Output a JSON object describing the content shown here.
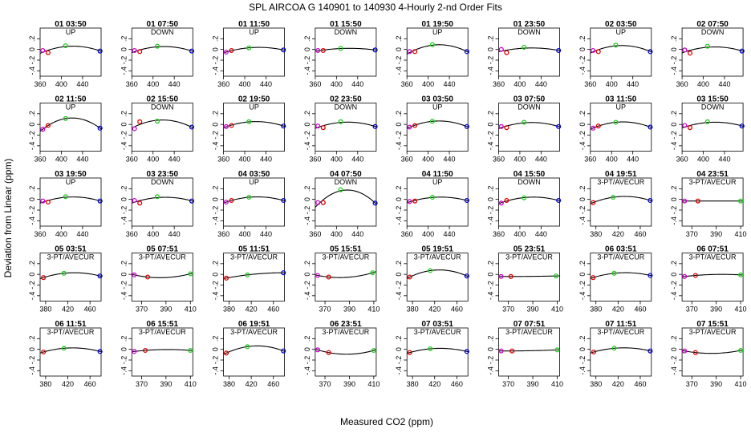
{
  "title": "SPL    AIRCOA G   140901 to 140930   4-Hourly 2-nd Order Fits",
  "xlabel": "Measured CO2 (ppm)",
  "ylabel": "Deviation from Linear (ppm)",
  "colors": {
    "red": "#dd0000",
    "green": "#22cc22",
    "blue": "#0000cc",
    "magenta": "#cc00cc"
  },
  "chart_data": {
    "type": "scatter",
    "rows": 5,
    "cols": 8,
    "ylim": [
      -0.5,
      0.4
    ],
    "yticks": [
      -0.4,
      -0.2,
      0,
      0.2
    ],
    "axis_sets": {
      "A": {
        "xlim": [
          360,
          475
        ],
        "xticks": [
          360,
          400,
          440
        ]
      },
      "B": {
        "xlim": [
          370,
          480
        ],
        "xticks": [
          380,
          420,
          460
        ]
      },
      "C": {
        "xlim": [
          362,
          412
        ],
        "xticks": [
          370,
          390,
          410
        ]
      }
    },
    "panels": [
      {
        "title": "01 03:50",
        "mode": "UP",
        "axis": "A",
        "points": [
          {
            "x": 365,
            "y": -0.02,
            "c": "magenta"
          },
          {
            "x": 375,
            "y": -0.06,
            "c": "red"
          },
          {
            "x": 408,
            "y": 0.07,
            "c": "green"
          },
          {
            "x": 473,
            "y": -0.03,
            "c": "blue"
          }
        ]
      },
      {
        "title": "01 07:50",
        "mode": "DOWN",
        "axis": "A",
        "points": [
          {
            "x": 365,
            "y": -0.02,
            "c": "magenta"
          },
          {
            "x": 375,
            "y": -0.04,
            "c": "red"
          },
          {
            "x": 408,
            "y": 0.06,
            "c": "green"
          },
          {
            "x": 473,
            "y": -0.03,
            "c": "blue"
          }
        ]
      },
      {
        "title": "01 11:50",
        "mode": "UP",
        "axis": "A",
        "points": [
          {
            "x": 365,
            "y": -0.05,
            "c": "magenta"
          },
          {
            "x": 375,
            "y": -0.02,
            "c": "red"
          },
          {
            "x": 408,
            "y": 0.03,
            "c": "green"
          },
          {
            "x": 473,
            "y": -0.01,
            "c": "blue"
          }
        ]
      },
      {
        "title": "01 15:50",
        "mode": "DOWN",
        "axis": "A",
        "points": [
          {
            "x": 365,
            "y": -0.02,
            "c": "magenta"
          },
          {
            "x": 375,
            "y": -0.02,
            "c": "red"
          },
          {
            "x": 408,
            "y": 0.02,
            "c": "green"
          },
          {
            "x": 473,
            "y": -0.01,
            "c": "blue"
          }
        ]
      },
      {
        "title": "01 19:50",
        "mode": "UP",
        "axis": "A",
        "points": [
          {
            "x": 365,
            "y": -0.04,
            "c": "magenta"
          },
          {
            "x": 375,
            "y": -0.04,
            "c": "red"
          },
          {
            "x": 408,
            "y": 0.09,
            "c": "green"
          },
          {
            "x": 473,
            "y": -0.04,
            "c": "blue"
          }
        ]
      },
      {
        "title": "01 23:50",
        "mode": "DOWN",
        "axis": "A",
        "points": [
          {
            "x": 365,
            "y": 0.0,
            "c": "magenta"
          },
          {
            "x": 375,
            "y": -0.06,
            "c": "red"
          },
          {
            "x": 408,
            "y": 0.04,
            "c": "green"
          },
          {
            "x": 473,
            "y": -0.02,
            "c": "blue"
          }
        ]
      },
      {
        "title": "02 03:50",
        "mode": "UP",
        "axis": "A",
        "points": [
          {
            "x": 365,
            "y": -0.02,
            "c": "magenta"
          },
          {
            "x": 375,
            "y": -0.04,
            "c": "red"
          },
          {
            "x": 408,
            "y": 0.08,
            "c": "green"
          },
          {
            "x": 473,
            "y": -0.04,
            "c": "blue"
          }
        ]
      },
      {
        "title": "02 07:50",
        "mode": "DOWN",
        "axis": "A",
        "points": [
          {
            "x": 365,
            "y": -0.01,
            "c": "magenta"
          },
          {
            "x": 375,
            "y": -0.07,
            "c": "red"
          },
          {
            "x": 408,
            "y": 0.06,
            "c": "green"
          },
          {
            "x": 473,
            "y": -0.03,
            "c": "blue"
          }
        ]
      },
      {
        "title": "02 11:50",
        "mode": "UP",
        "axis": "A",
        "points": [
          {
            "x": 365,
            "y": -0.09,
            "c": "magenta"
          },
          {
            "x": 375,
            "y": -0.02,
            "c": "red"
          },
          {
            "x": 408,
            "y": 0.11,
            "c": "green"
          },
          {
            "x": 473,
            "y": -0.07,
            "c": "blue"
          }
        ]
      },
      {
        "title": "02 15:50",
        "mode": "DOWN",
        "axis": "A",
        "points": [
          {
            "x": 365,
            "y": -0.08,
            "c": "magenta"
          },
          {
            "x": 375,
            "y": 0.05,
            "c": "red"
          },
          {
            "x": 408,
            "y": 0.06,
            "c": "green"
          },
          {
            "x": 473,
            "y": -0.05,
            "c": "blue"
          }
        ]
      },
      {
        "title": "02 19:50",
        "mode": "UP",
        "axis": "A",
        "points": [
          {
            "x": 365,
            "y": -0.04,
            "c": "magenta"
          },
          {
            "x": 375,
            "y": -0.02,
            "c": "red"
          },
          {
            "x": 408,
            "y": 0.05,
            "c": "green"
          },
          {
            "x": 473,
            "y": -0.03,
            "c": "blue"
          }
        ]
      },
      {
        "title": "02 23:50",
        "mode": "DOWN",
        "axis": "A",
        "points": [
          {
            "x": 365,
            "y": -0.03,
            "c": "magenta"
          },
          {
            "x": 375,
            "y": -0.06,
            "c": "red"
          },
          {
            "x": 408,
            "y": 0.05,
            "c": "green"
          },
          {
            "x": 473,
            "y": -0.04,
            "c": "blue"
          }
        ]
      },
      {
        "title": "03 03:50",
        "mode": "UP",
        "axis": "A",
        "points": [
          {
            "x": 365,
            "y": -0.05,
            "c": "magenta"
          },
          {
            "x": 375,
            "y": -0.02,
            "c": "red"
          },
          {
            "x": 408,
            "y": 0.06,
            "c": "green"
          },
          {
            "x": 473,
            "y": -0.04,
            "c": "blue"
          }
        ]
      },
      {
        "title": "03 07:50",
        "mode": "DOWN",
        "axis": "A",
        "points": [
          {
            "x": 365,
            "y": -0.04,
            "c": "magenta"
          },
          {
            "x": 375,
            "y": -0.06,
            "c": "red"
          },
          {
            "x": 408,
            "y": 0.04,
            "c": "green"
          },
          {
            "x": 473,
            "y": -0.04,
            "c": "blue"
          }
        ]
      },
      {
        "title": "03 11:50",
        "mode": "UP",
        "axis": "A",
        "points": [
          {
            "x": 365,
            "y": -0.07,
            "c": "magenta"
          },
          {
            "x": 375,
            "y": -0.03,
            "c": "red"
          },
          {
            "x": 408,
            "y": 0.04,
            "c": "green"
          },
          {
            "x": 473,
            "y": -0.05,
            "c": "blue"
          }
        ]
      },
      {
        "title": "03 15:50",
        "mode": "DOWN",
        "axis": "A",
        "points": [
          {
            "x": 365,
            "y": -0.02,
            "c": "magenta"
          },
          {
            "x": 375,
            "y": -0.06,
            "c": "red"
          },
          {
            "x": 408,
            "y": 0.05,
            "c": "green"
          },
          {
            "x": 473,
            "y": -0.03,
            "c": "blue"
          }
        ]
      },
      {
        "title": "03 19:50",
        "mode": "UP",
        "axis": "A",
        "points": [
          {
            "x": 365,
            "y": -0.03,
            "c": "magenta"
          },
          {
            "x": 375,
            "y": -0.05,
            "c": "red"
          },
          {
            "x": 408,
            "y": 0.05,
            "c": "green"
          },
          {
            "x": 473,
            "y": -0.03,
            "c": "blue"
          }
        ]
      },
      {
        "title": "03 23:50",
        "mode": "DOWN",
        "axis": "A",
        "points": [
          {
            "x": 365,
            "y": -0.02,
            "c": "magenta"
          },
          {
            "x": 375,
            "y": -0.07,
            "c": "red"
          },
          {
            "x": 408,
            "y": 0.05,
            "c": "green"
          },
          {
            "x": 473,
            "y": -0.03,
            "c": "blue"
          }
        ]
      },
      {
        "title": "04 03:50",
        "mode": "UP",
        "axis": "A",
        "points": [
          {
            "x": 365,
            "y": -0.05,
            "c": "magenta"
          },
          {
            "x": 375,
            "y": -0.02,
            "c": "red"
          },
          {
            "x": 408,
            "y": 0.04,
            "c": "green"
          },
          {
            "x": 473,
            "y": -0.02,
            "c": "blue"
          }
        ]
      },
      {
        "title": "04 07:50",
        "mode": "DOWN",
        "axis": "A",
        "points": [
          {
            "x": 365,
            "y": -0.06,
            "c": "magenta"
          },
          {
            "x": 375,
            "y": -0.06,
            "c": "red"
          },
          {
            "x": 408,
            "y": 0.18,
            "c": "green"
          },
          {
            "x": 473,
            "y": -0.07,
            "c": "blue"
          }
        ]
      },
      {
        "title": "04 11:50",
        "mode": "UP",
        "axis": "A",
        "points": [
          {
            "x": 365,
            "y": -0.04,
            "c": "magenta"
          },
          {
            "x": 375,
            "y": -0.03,
            "c": "red"
          },
          {
            "x": 408,
            "y": 0.04,
            "c": "green"
          },
          {
            "x": 473,
            "y": -0.02,
            "c": "blue"
          }
        ]
      },
      {
        "title": "04 15:50",
        "mode": "DOWN",
        "axis": "A",
        "points": [
          {
            "x": 365,
            "y": -0.07,
            "c": "magenta"
          },
          {
            "x": 375,
            "y": -0.02,
            "c": "red"
          },
          {
            "x": 408,
            "y": 0.03,
            "c": "green"
          },
          {
            "x": 473,
            "y": -0.02,
            "c": "blue"
          }
        ]
      },
      {
        "title": "04 19:51",
        "mode": "3-PT/AVECUR",
        "axis": "B",
        "points": [
          {
            "x": 375,
            "y": -0.06,
            "c": "red"
          },
          {
            "x": 411,
            "y": 0.04,
            "c": "green"
          },
          {
            "x": 478,
            "y": -0.02,
            "c": "blue"
          }
        ]
      },
      {
        "title": "04 23:51",
        "mode": "3-PT/AVECUR",
        "axis": "C",
        "points": [
          {
            "x": 364,
            "y": -0.03,
            "c": "magenta"
          },
          {
            "x": 375,
            "y": -0.03,
            "c": "red"
          },
          {
            "x": 410,
            "y": -0.03,
            "c": "green"
          }
        ]
      },
      {
        "title": "05 03:51",
        "mode": "3-PT/AVECUR",
        "axis": "B",
        "points": [
          {
            "x": 376,
            "y": -0.06,
            "c": "red"
          },
          {
            "x": 413,
            "y": 0.02,
            "c": "green"
          },
          {
            "x": 478,
            "y": -0.03,
            "c": "blue"
          }
        ]
      },
      {
        "title": "05 07:51",
        "mode": "3-PT/AVECUR",
        "axis": "C",
        "points": [
          {
            "x": 364,
            "y": -0.01,
            "c": "magenta"
          },
          {
            "x": 375,
            "y": -0.05,
            "c": "red"
          },
          {
            "x": 410,
            "y": 0.01,
            "c": "green"
          }
        ]
      },
      {
        "title": "05 11:51",
        "mode": "3-PT/AVECUR",
        "axis": "B",
        "points": [
          {
            "x": 375,
            "y": -0.07,
            "c": "red"
          },
          {
            "x": 413,
            "y": -0.01,
            "c": "green"
          },
          {
            "x": 478,
            "y": 0.03,
            "c": "blue"
          }
        ]
      },
      {
        "title": "05 15:51",
        "mode": "3-PT/AVECUR",
        "axis": "C",
        "points": [
          {
            "x": 364,
            "y": -0.02,
            "c": "magenta"
          },
          {
            "x": 373,
            "y": -0.05,
            "c": "red"
          },
          {
            "x": 409,
            "y": 0.03,
            "c": "green"
          }
        ]
      },
      {
        "title": "05 19:51",
        "mode": "3-PT/AVECUR",
        "axis": "B",
        "points": [
          {
            "x": 375,
            "y": -0.05,
            "c": "red"
          },
          {
            "x": 412,
            "y": 0.07,
            "c": "green"
          },
          {
            "x": 478,
            "y": -0.03,
            "c": "blue"
          }
        ]
      },
      {
        "title": "05 23:51",
        "mode": "3-PT/AVECUR",
        "axis": "C",
        "points": [
          {
            "x": 364,
            "y": -0.04,
            "c": "magenta"
          },
          {
            "x": 372,
            "y": -0.04,
            "c": "red"
          },
          {
            "x": 409,
            "y": -0.03,
            "c": "green"
          }
        ]
      },
      {
        "title": "06 03:51",
        "mode": "3-PT/AVECUR",
        "axis": "B",
        "points": [
          {
            "x": 375,
            "y": -0.06,
            "c": "red"
          },
          {
            "x": 413,
            "y": 0.02,
            "c": "green"
          },
          {
            "x": 478,
            "y": -0.02,
            "c": "blue"
          }
        ]
      },
      {
        "title": "06 07:51",
        "mode": "3-PT/AVECUR",
        "axis": "C",
        "points": [
          {
            "x": 364,
            "y": -0.04,
            "c": "magenta"
          },
          {
            "x": 373,
            "y": -0.02,
            "c": "red"
          },
          {
            "x": 410,
            "y": -0.01,
            "c": "green"
          }
        ]
      },
      {
        "title": "06 11:51",
        "mode": "3-PT/AVECUR",
        "axis": "B",
        "points": [
          {
            "x": 376,
            "y": -0.05,
            "c": "red"
          },
          {
            "x": 413,
            "y": 0.02,
            "c": "green"
          },
          {
            "x": 478,
            "y": -0.04,
            "c": "blue"
          }
        ]
      },
      {
        "title": "06 15:51",
        "mode": "3-PT/AVECUR",
        "axis": "C",
        "points": [
          {
            "x": 364,
            "y": -0.04,
            "c": "magenta"
          },
          {
            "x": 373,
            "y": -0.02,
            "c": "red"
          },
          {
            "x": 410,
            "y": -0.02,
            "c": "green"
          }
        ]
      },
      {
        "title": "06 19:51",
        "mode": "3-PT/AVECUR",
        "axis": "B",
        "points": [
          {
            "x": 375,
            "y": -0.07,
            "c": "red"
          },
          {
            "x": 413,
            "y": 0.05,
            "c": "green"
          },
          {
            "x": 478,
            "y": -0.03,
            "c": "blue"
          }
        ]
      },
      {
        "title": "06 23:51",
        "mode": "3-PT/AVECUR",
        "axis": "C",
        "points": [
          {
            "x": 364,
            "y": -0.01,
            "c": "magenta"
          },
          {
            "x": 373,
            "y": -0.06,
            "c": "red"
          },
          {
            "x": 410,
            "y": -0.02,
            "c": "green"
          }
        ]
      },
      {
        "title": "07 03:51",
        "mode": "3-PT/AVECUR",
        "axis": "B",
        "points": [
          {
            "x": 375,
            "y": -0.06,
            "c": "red"
          },
          {
            "x": 412,
            "y": 0.01,
            "c": "green"
          },
          {
            "x": 478,
            "y": -0.04,
            "c": "blue"
          }
        ]
      },
      {
        "title": "07 07:51",
        "mode": "3-PT/AVECUR",
        "axis": "C",
        "points": [
          {
            "x": 364,
            "y": -0.03,
            "c": "magenta"
          },
          {
            "x": 373,
            "y": -0.03,
            "c": "red"
          },
          {
            "x": 410,
            "y": -0.01,
            "c": "green"
          }
        ]
      },
      {
        "title": "07 11:51",
        "mode": "3-PT/AVECUR",
        "axis": "B",
        "points": [
          {
            "x": 376,
            "y": -0.05,
            "c": "red"
          },
          {
            "x": 413,
            "y": 0.02,
            "c": "green"
          },
          {
            "x": 478,
            "y": -0.03,
            "c": "blue"
          }
        ]
      },
      {
        "title": "07 15:51",
        "mode": "3-PT/AVECUR",
        "axis": "C",
        "points": [
          {
            "x": 364,
            "y": -0.03,
            "c": "magenta"
          },
          {
            "x": 373,
            "y": -0.06,
            "c": "red"
          },
          {
            "x": 410,
            "y": -0.02,
            "c": "green"
          }
        ]
      }
    ]
  }
}
